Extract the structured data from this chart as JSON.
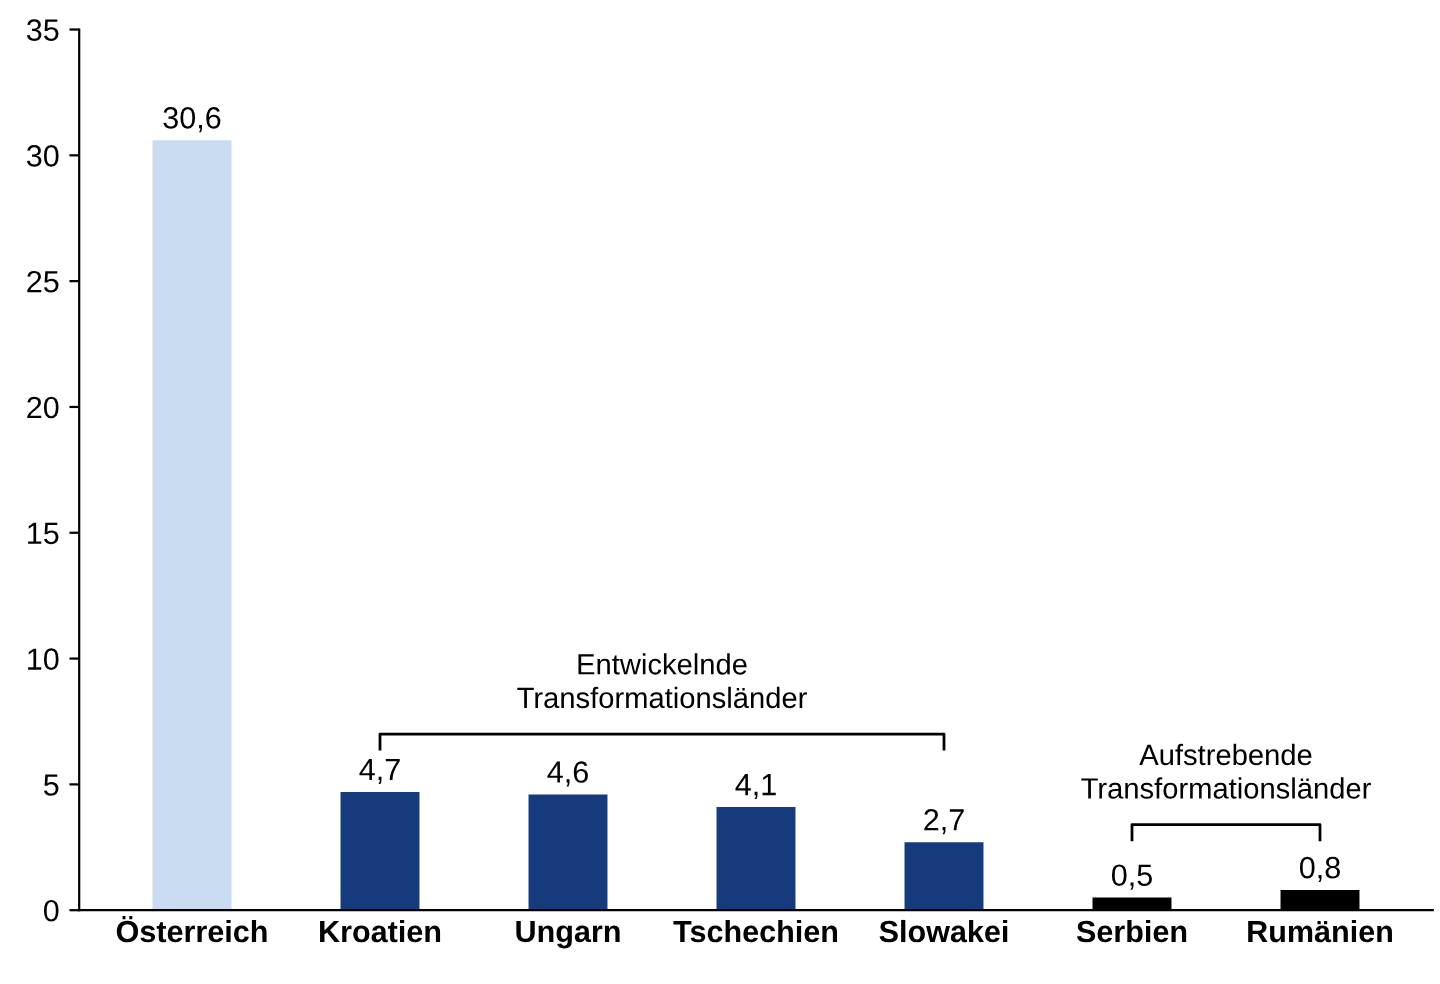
{
  "chart_data": {
    "type": "bar",
    "categories": [
      "Österreich",
      "Kroatien",
      "Ungarn",
      "Tschechien",
      "Slowakei",
      "Serbien",
      "Rumänien"
    ],
    "values": [
      30.6,
      4.7,
      4.6,
      4.1,
      2.7,
      0.5,
      0.8
    ],
    "value_labels": [
      "30,6",
      "4,7",
      "4,6",
      "4,1",
      "2,7",
      "0,5",
      "0,8"
    ],
    "colors": [
      "#c9dcf2",
      "#163b7c",
      "#163b7c",
      "#163b7c",
      "#163b7c",
      "#000000",
      "#000000"
    ],
    "ylim": [
      0,
      35
    ],
    "yticks": [
      0,
      5,
      10,
      15,
      20,
      25,
      30,
      35
    ],
    "annotations": [
      "Entwickelnde\nTransformationsländer",
      "Aufstrebende\nTransformationsländer"
    ],
    "grid": false,
    "legend": false
  }
}
